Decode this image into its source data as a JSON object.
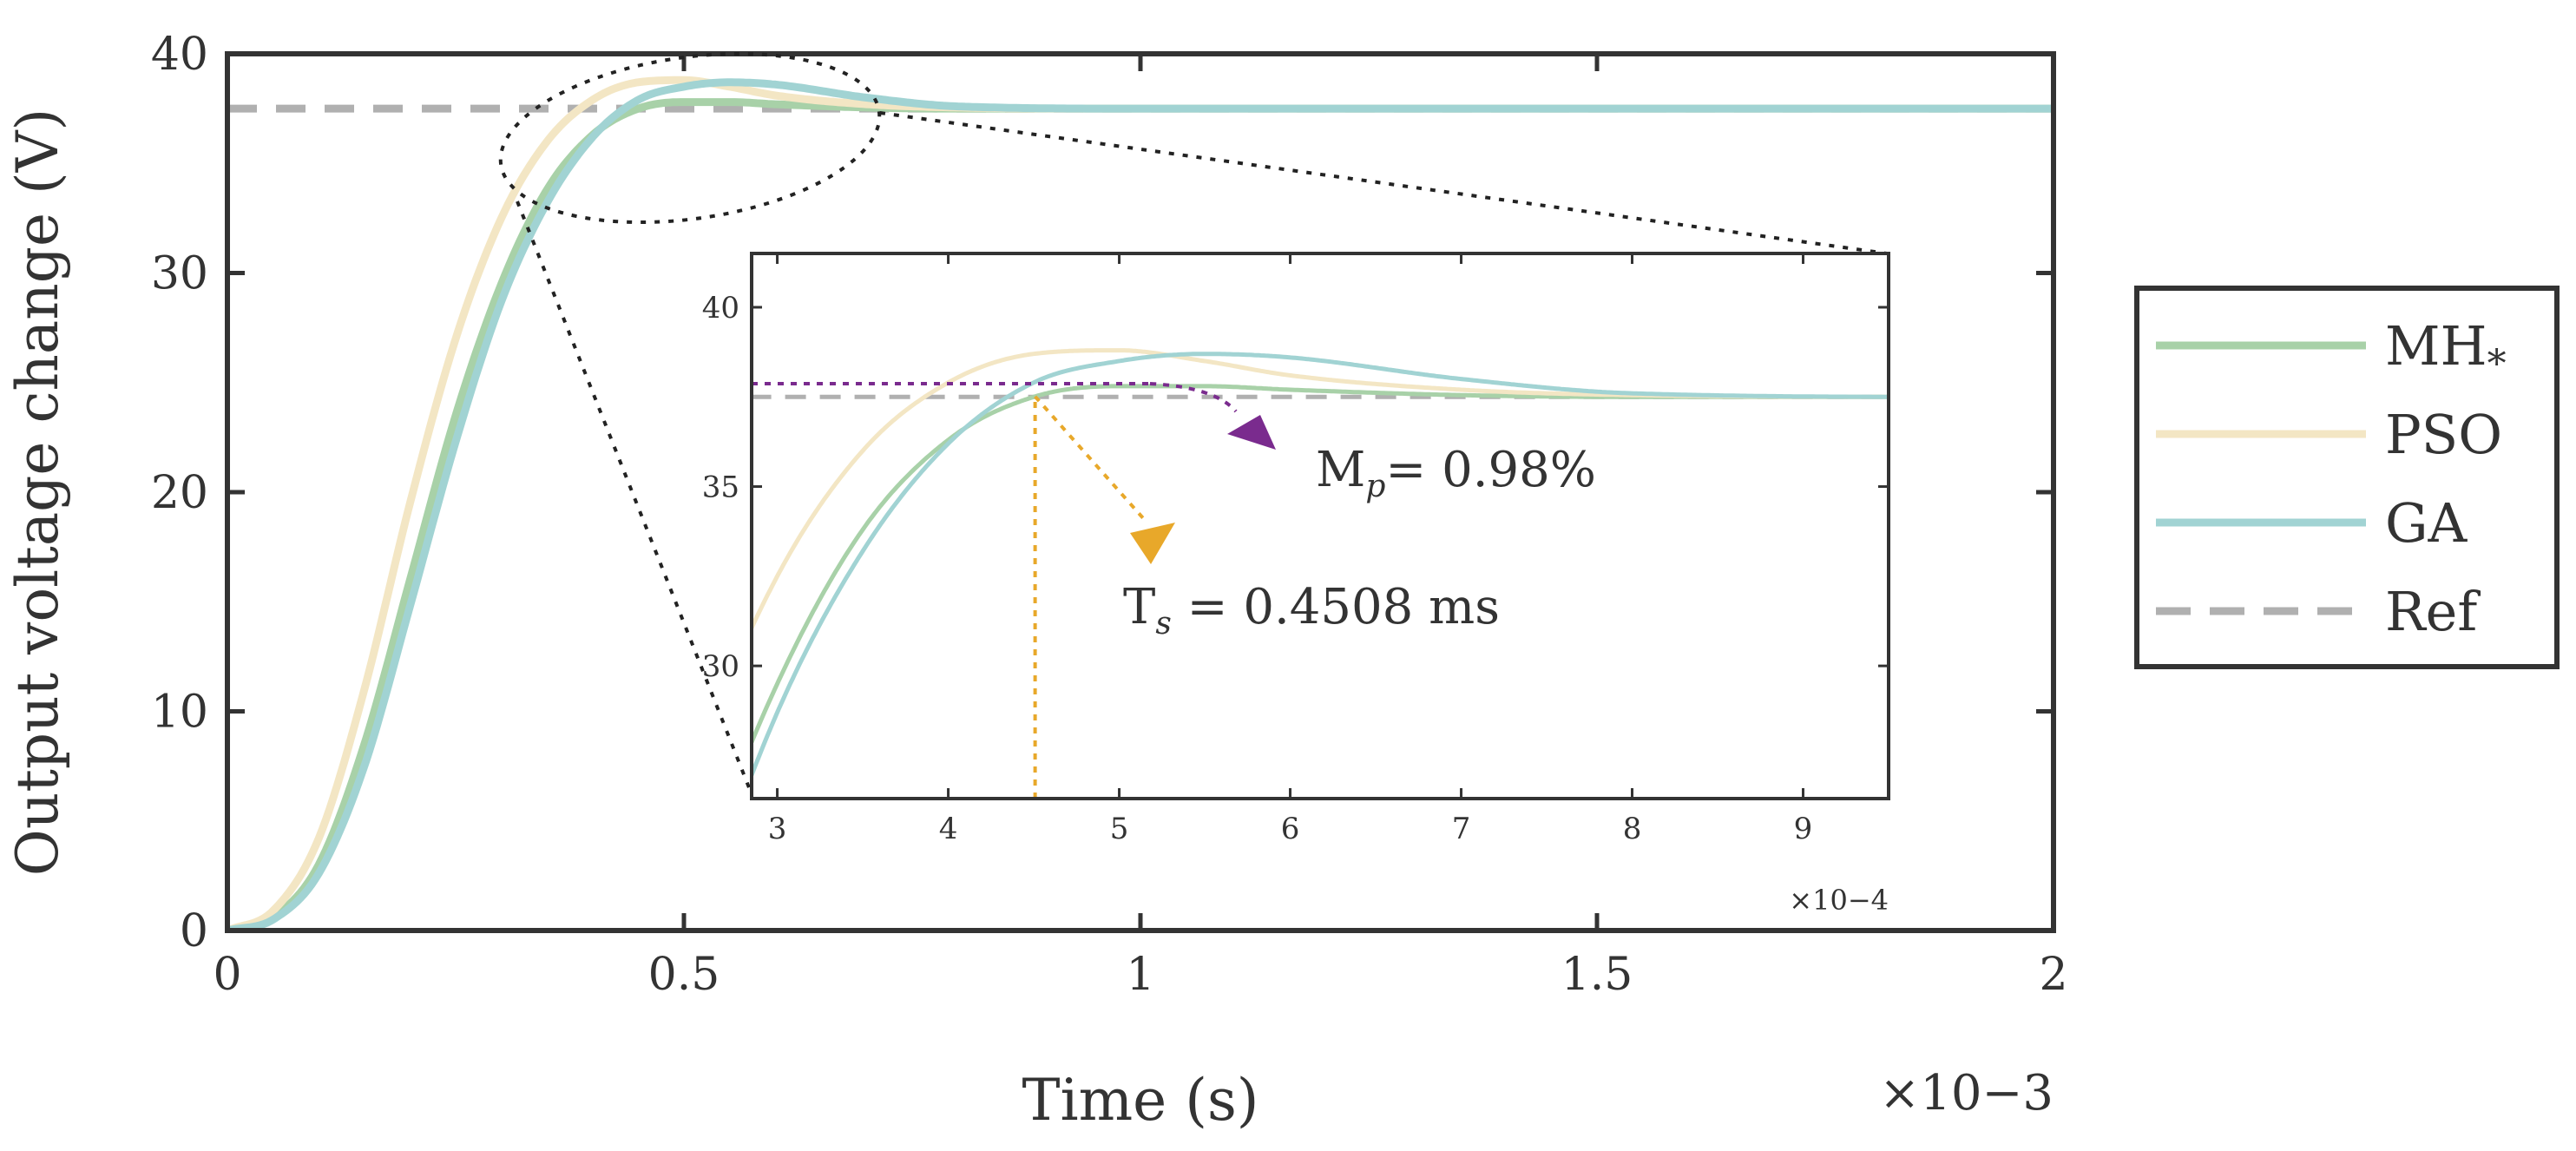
{
  "chart_data": {
    "type": "line",
    "xlabel": "Time (s)",
    "ylabel": "Output voltage change (V)",
    "x_multiplier": "×10−3",
    "xlim": [
      0,
      0.002
    ],
    "ylim": [
      0,
      40
    ],
    "xticks": [
      0,
      0.0005,
      0.001,
      0.0015,
      0.002
    ],
    "xtick_labels": [
      "0",
      "0.5",
      "1",
      "1.5",
      "2"
    ],
    "yticks": [
      0,
      10,
      20,
      30,
      40
    ],
    "ytick_labels": [
      "0",
      "10",
      "20",
      "30",
      "40"
    ],
    "grid": false,
    "legend_position": "outside-right",
    "series": [
      {
        "name": "MH*",
        "legend_main": "MH",
        "legend_sub": "*",
        "color": "#a8d1a8",
        "style": "solid",
        "x": [
          0,
          5e-05,
          0.0001,
          0.00015,
          0.0002,
          0.00025,
          0.0003,
          0.00035,
          0.0004,
          0.00045,
          0.0005,
          0.00055,
          0.0006,
          0.0007,
          0.0008,
          0.001,
          0.0015,
          0.002
        ],
        "y": [
          0,
          0.6,
          3,
          8.5,
          16,
          23.5,
          29.5,
          33.8,
          36.3,
          37.5,
          37.8,
          37.8,
          37.7,
          37.55,
          37.5,
          37.5,
          37.5,
          37.5
        ]
      },
      {
        "name": "PSO",
        "legend_main": "PSO",
        "legend_sub": "",
        "color": "#f3e6c4",
        "style": "solid",
        "x": [
          0,
          5e-05,
          0.0001,
          0.00015,
          0.0002,
          0.00025,
          0.0003,
          0.00035,
          0.0004,
          0.00045,
          0.0005,
          0.00055,
          0.0006,
          0.0007,
          0.0008,
          0.001,
          0.0015,
          0.002
        ],
        "y": [
          0,
          0.9,
          4.2,
          11,
          19.5,
          27,
          32.5,
          36,
          37.9,
          38.7,
          38.8,
          38.5,
          38.1,
          37.7,
          37.55,
          37.5,
          37.5,
          37.5
        ]
      },
      {
        "name": "GA",
        "legend_main": "GA",
        "legend_sub": "",
        "color": "#a1d3d3",
        "style": "solid",
        "x": [
          0,
          5e-05,
          0.0001,
          0.00015,
          0.0002,
          0.00025,
          0.0003,
          0.00035,
          0.0004,
          0.00045,
          0.0005,
          0.00055,
          0.0006,
          0.0007,
          0.0008,
          0.001,
          0.0015,
          0.002
        ],
        "y": [
          0,
          0.5,
          2.6,
          7.5,
          14.8,
          22.3,
          28.7,
          33.2,
          36.2,
          37.9,
          38.5,
          38.7,
          38.6,
          38.0,
          37.6,
          37.5,
          37.5,
          37.5
        ]
      },
      {
        "name": "Ref",
        "legend_main": "Ref",
        "legend_sub": "",
        "color": "#b0b0b0",
        "style": "dashed",
        "x": [
          0,
          0.002
        ],
        "y": [
          37.5,
          37.5
        ]
      }
    ],
    "inset": {
      "xlim": [
        0.000285,
        0.00095
      ],
      "ylim": [
        26.3,
        41.5
      ],
      "xticks": [
        0.0003,
        0.0004,
        0.0005,
        0.0006,
        0.0007,
        0.0008,
        0.0009
      ],
      "xtick_labels": [
        "3",
        "4",
        "5",
        "6",
        "7",
        "8",
        "9"
      ],
      "yticks": [
        30,
        35,
        40
      ],
      "ytick_labels": [
        "30",
        "35",
        "40"
      ],
      "x_multiplier": "×10−4"
    },
    "annotations": {
      "settling_time": {
        "symbol": "T",
        "sub": "s",
        "text": " = 0.4508 ms",
        "x": 0.0004508,
        "color": "#e8a82a"
      },
      "overshoot": {
        "symbol": "M",
        "sub": "p",
        "text": "= 0.98%",
        "y": 37.87,
        "color": "#7a2b8e"
      }
    }
  }
}
